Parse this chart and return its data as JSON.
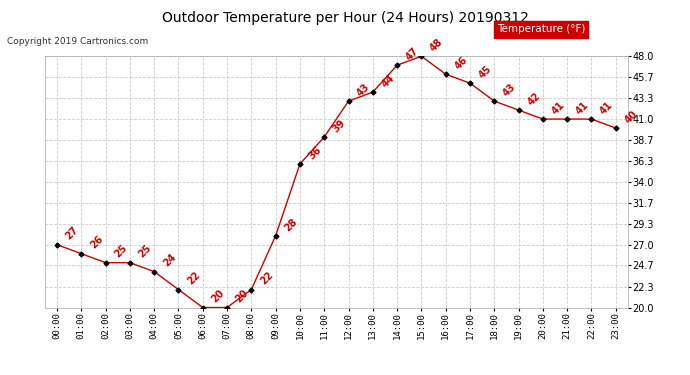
{
  "title": "Outdoor Temperature per Hour (24 Hours) 20190312",
  "copyright": "Copyright 2019 Cartronics.com",
  "legend_label": "Temperature (°F)",
  "hours": [
    "00:00",
    "01:00",
    "02:00",
    "03:00",
    "04:00",
    "05:00",
    "06:00",
    "07:00",
    "08:00",
    "09:00",
    "10:00",
    "11:00",
    "12:00",
    "13:00",
    "14:00",
    "15:00",
    "16:00",
    "17:00",
    "18:00",
    "19:00",
    "20:00",
    "21:00",
    "22:00",
    "23:00"
  ],
  "temps": [
    27,
    26,
    25,
    25,
    24,
    22,
    20,
    20,
    22,
    28,
    36,
    39,
    43,
    44,
    47,
    48,
    46,
    45,
    43,
    42,
    41,
    41,
    41,
    40
  ],
  "ylim": [
    20.0,
    48.0
  ],
  "yticks": [
    20.0,
    22.3,
    24.7,
    27.0,
    29.3,
    31.7,
    34.0,
    36.3,
    38.7,
    41.0,
    43.3,
    45.7,
    48.0
  ],
  "line_color": "#cc0000",
  "marker_color": "#000000",
  "label_color": "#cc0000",
  "bg_color": "#ffffff",
  "grid_color": "#cccccc",
  "title_color": "#000000",
  "legend_bg": "#cc0000",
  "legend_fg": "#ffffff"
}
